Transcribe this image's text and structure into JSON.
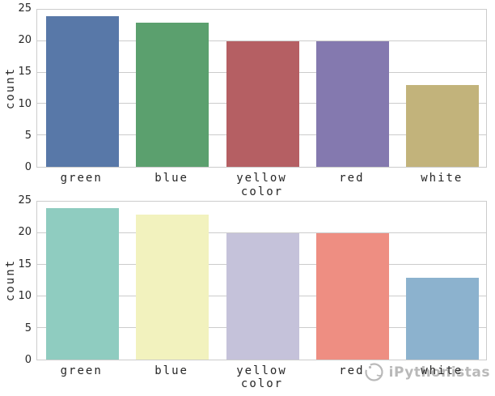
{
  "watermark": {
    "text": "iPythonistas",
    "logo": "python-snake-logo"
  },
  "colors": {
    "grid": "#cccccc",
    "spine": "#cccccc",
    "text": "#262626",
    "watermark": "#8f8f8f"
  },
  "chart_data": [
    {
      "type": "bar",
      "title": "",
      "categories": [
        "green",
        "blue",
        "yellow",
        "red",
        "white"
      ],
      "values": [
        24,
        23,
        20,
        20,
        13
      ],
      "xlabel": "color",
      "ylabel": "count",
      "ylim": [
        0,
        25
      ],
      "yticks": [
        0,
        5,
        10,
        15,
        20,
        25
      ],
      "grid": true,
      "legend": "none",
      "palette_name": "seaborn-deep",
      "bar_colors": [
        "#5878a8",
        "#5ba06e",
        "#b55f63",
        "#8479af",
        "#c2b37b"
      ]
    },
    {
      "type": "bar",
      "title": "",
      "categories": [
        "green",
        "blue",
        "yellow",
        "red",
        "white"
      ],
      "values": [
        24,
        23,
        20,
        20,
        13
      ],
      "xlabel": "color",
      "ylabel": "count",
      "ylim": [
        0,
        25
      ],
      "yticks": [
        0,
        5,
        10,
        15,
        20,
        25
      ],
      "grid": true,
      "legend": "none",
      "palette_name": "Set3-pastel",
      "bar_colors": [
        "#8fccc0",
        "#f2f2be",
        "#c5c2da",
        "#ee8e82",
        "#8cb2ce"
      ]
    }
  ]
}
